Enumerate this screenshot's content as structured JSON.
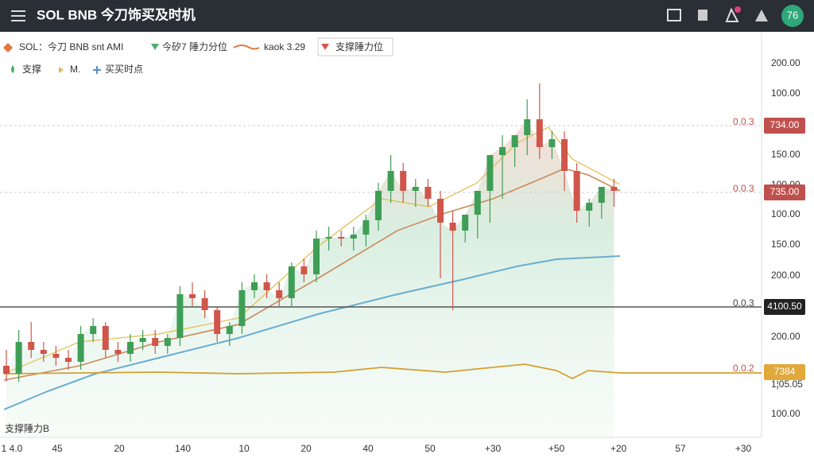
{
  "header": {
    "title": "SOL BNB 今刀饰买及时机",
    "avatar": "76"
  },
  "legend": {
    "row1": [
      "SOL：今刀 BNB snt AMI",
      "今矽7 陲力分位",
      "kaok 3.29",
      "支撑陲力位"
    ],
    "row2": [
      "支撑",
      "M.",
      "买买时点"
    ]
  },
  "axis_labels": [
    "200.00",
    "100.00",
    "150.00",
    "100.00",
    "100.00",
    "150.00",
    "200.00",
    "200.00",
    "1¦05.05",
    "100.00"
  ],
  "levels": [
    {
      "tag": "0.0.3",
      "badge": "734.00"
    },
    {
      "tag": "0.0.3",
      "badge": "735.00"
    },
    {
      "tag": "0.0.3",
      "badge": "4100.50"
    },
    {
      "tag": "0.0.2",
      "badge": "7384"
    }
  ],
  "x_labels": [
    "1 4.0",
    "45",
    "20",
    "140",
    "10",
    "20",
    "40",
    "50",
    "+30",
    "+50",
    "+20",
    "57",
    "+30"
  ],
  "footnote": "支撑陲力B",
  "candles": {
    "open": [
      18,
      16,
      24,
      22,
      21,
      20,
      19,
      26,
      28,
      22,
      21,
      24,
      25,
      23,
      25,
      36,
      35,
      32,
      26,
      28,
      37,
      39,
      37,
      35,
      43,
      41,
      50,
      50.4,
      50,
      51,
      54.6,
      62,
      67,
      62,
      63,
      60,
      54,
      52,
      56,
      62,
      71,
      73,
      76,
      80,
      73,
      75,
      67,
      57,
      59,
      63
    ],
    "high": [
      22,
      27,
      29,
      24,
      23,
      22,
      28,
      30,
      29,
      24,
      26,
      27,
      27,
      26,
      38,
      39,
      37,
      33,
      29,
      39,
      41,
      41,
      39,
      44,
      45,
      52,
      53,
      52,
      53,
      56,
      64,
      71,
      69,
      65,
      65,
      62,
      57,
      55,
      58,
      64,
      76,
      75,
      85,
      89,
      77,
      77,
      69,
      60,
      62,
      65
    ],
    "low": [
      14,
      14,
      20,
      19,
      18,
      17,
      17,
      24,
      20,
      19,
      19,
      22,
      21,
      21,
      23,
      33,
      30,
      24,
      23,
      26,
      35,
      35,
      33,
      33,
      39,
      39,
      47,
      48,
      47,
      48,
      52,
      59,
      59,
      58,
      58,
      40,
      32,
      49,
      50,
      54,
      60,
      68,
      71,
      70,
      70,
      62,
      54,
      53,
      55,
      58
    ],
    "close": [
      16,
      24,
      22,
      21,
      20,
      19,
      26,
      28,
      22,
      21,
      24,
      25,
      23,
      25,
      36,
      35,
      32,
      26,
      28,
      37,
      39,
      37,
      35,
      43,
      41,
      50,
      50.4,
      50,
      51,
      54.6,
      62,
      67,
      62,
      63,
      60,
      54,
      52,
      56,
      62,
      71,
      73,
      76,
      80,
      73,
      75,
      67,
      57,
      59,
      63,
      62
    ]
  }
}
